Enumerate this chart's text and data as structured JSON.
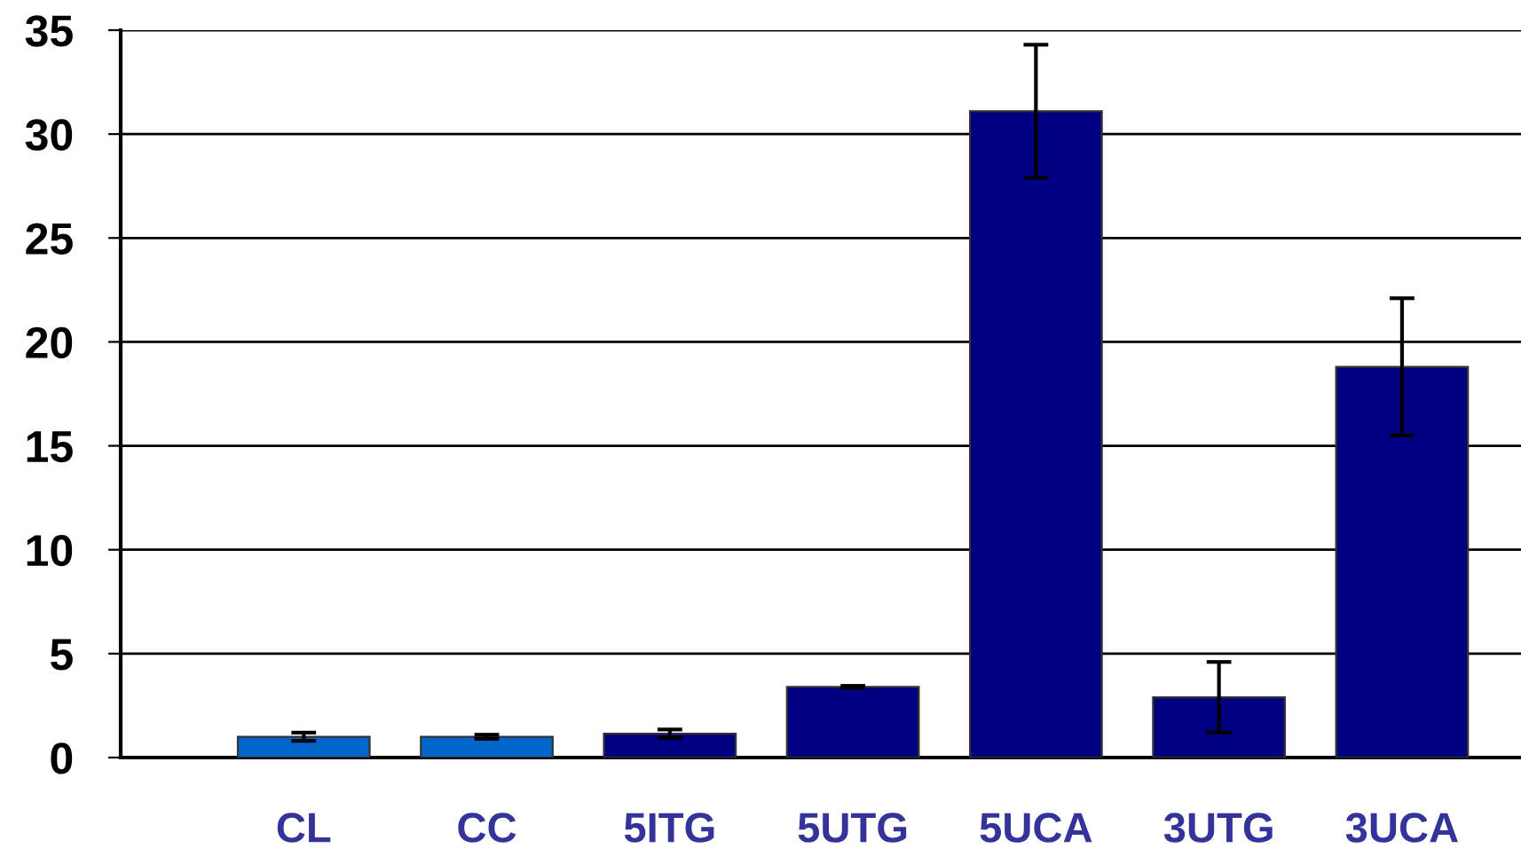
{
  "chart_data": {
    "type": "bar",
    "categories": [
      "CL",
      "CC",
      "5ITG",
      "5UTG",
      "5UCA",
      "3UTG",
      "3UCA"
    ],
    "values": [
      1.0,
      1.0,
      1.15,
      3.4,
      31.1,
      2.9,
      18.8
    ],
    "errors": [
      0.2,
      0.1,
      0.2,
      0.05,
      3.2,
      1.7,
      3.3
    ],
    "colors": [
      "#0066cc",
      "#0066cc",
      "#000080",
      "#000080",
      "#000080",
      "#000080",
      "#000080"
    ],
    "ylim": [
      0,
      35
    ],
    "yticks": [
      0,
      5,
      10,
      15,
      20,
      25,
      30,
      35
    ],
    "grid": "y"
  }
}
